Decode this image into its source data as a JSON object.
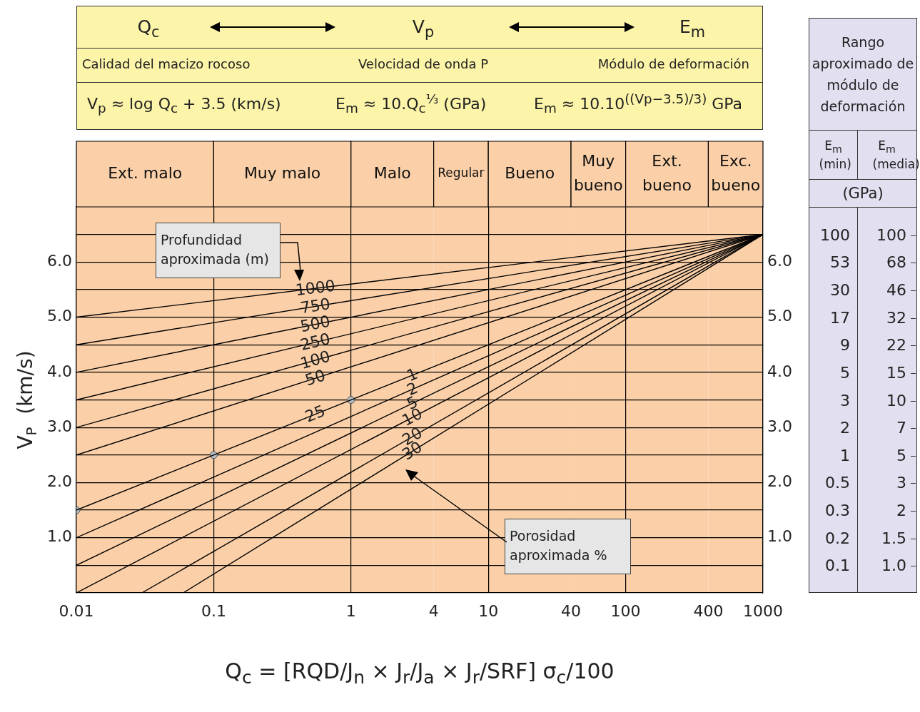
{
  "chart_data": [
    {
      "type": "line",
      "xlabel": "Q$_{c}$ = [RQD/J$_{n}$ × J$_{r}$/J$_{a}$ × J$_{r}$/SRF] σ$_{c}$/100",
      "ylabel": "V$_{P}$  (km/s)",
      "log": "x",
      "grid": true,
      "xlim": [
        0.01,
        1000
      ],
      "xticks": [
        0.01,
        0.1,
        1,
        4,
        10,
        40,
        100,
        400,
        1000
      ],
      "ylim": [
        0,
        7
      ],
      "yticks": [
        {
          "value": 0.5,
          "label": null
        },
        {
          "value": 1,
          "label": "1.0"
        },
        {
          "value": 1.5,
          "label": null
        },
        {
          "value": 2,
          "label": "2.0"
        },
        {
          "value": 2.5,
          "label": null
        },
        {
          "value": 3,
          "label": "3.0"
        },
        {
          "value": 3.5,
          "label": null
        },
        {
          "value": 4,
          "label": "4.0"
        },
        {
          "value": 4.5,
          "label": null
        },
        {
          "value": 5,
          "label": "5.0"
        },
        {
          "value": 5.5,
          "label": null
        },
        {
          "value": 6,
          "label": "6.0"
        },
        {
          "value": 6.5,
          "label": null
        }
      ],
      "y2lim": [
        0,
        7
      ],
      "y2ticks": [
        {
          "value": 1,
          "label": "1.0"
        },
        {
          "value": 2,
          "label": "2.0"
        },
        {
          "value": 3,
          "label": "3.0"
        },
        {
          "value": 4,
          "label": "4.0"
        },
        {
          "value": 5,
          "label": "5.0"
        },
        {
          "value": 6,
          "label": "6.0"
        }
      ],
      "bands": [
        {
          "axis": "x",
          "from": 0.01,
          "to": 0.1,
          "label": "Ext. malo",
          "color": "#fbd0a8"
        },
        {
          "axis": "x",
          "from": 0.1,
          "to": 1,
          "label": "Muy malo",
          "color": "#fbd0a8"
        },
        {
          "axis": "x",
          "from": 1,
          "to": 4,
          "label": "Malo",
          "color": "#fbd0a8"
        },
        {
          "axis": "x",
          "from": 4,
          "to": 10,
          "label": "Regular",
          "color": "#fbd0a8"
        },
        {
          "axis": "x",
          "from": 10,
          "to": 40,
          "label": "Bueno",
          "color": "#fbd0a8"
        },
        {
          "axis": "x",
          "from": 40,
          "to": 100,
          "label": "Muy bueno",
          "color": "#fbd0a8"
        },
        {
          "axis": "x",
          "from": 100,
          "to": 400,
          "label": "Ext. bueno",
          "color": "#fbd0a8"
        },
        {
          "axis": "x",
          "from": 400,
          "to": 1000,
          "label": "Exc. bueno",
          "color": "#fbd0a8"
        }
      ],
      "series": [
        {
          "name": "1000",
          "color": "#000000",
          "x": [
            0.01,
            1000
          ],
          "values": [
            5.0,
            6.5
          ]
        },
        {
          "name": "750",
          "color": "#000000",
          "x": [
            0.01,
            1000
          ],
          "values": [
            4.5,
            6.5
          ]
        },
        {
          "name": "500",
          "color": "#000000",
          "x": [
            0.01,
            1000
          ],
          "values": [
            4.0,
            6.5
          ]
        },
        {
          "name": "250",
          "color": "#000000",
          "x": [
            0.01,
            1000
          ],
          "values": [
            3.5,
            6.5
          ]
        },
        {
          "name": "100",
          "color": "#000000",
          "x": [
            0.01,
            1000
          ],
          "values": [
            3.0,
            6.5
          ]
        },
        {
          "name": "50",
          "color": "#000000",
          "x": [
            0.01,
            1000
          ],
          "values": [
            2.5,
            6.5
          ]
        },
        {
          "name": "25",
          "color": "#000000",
          "x": [
            0.01,
            1000
          ],
          "values": [
            1.5,
            6.5
          ]
        },
        {
          "name": "2",
          "color": "#000000",
          "x": [
            0.01,
            1000
          ],
          "values": [
            1.0,
            6.5
          ]
        },
        {
          "name": "5",
          "color": "#000000",
          "x": [
            0.01,
            1000
          ],
          "values": [
            0.5,
            6.5
          ]
        },
        {
          "name": "10",
          "color": "#000000",
          "x": [
            0.01,
            1000
          ],
          "values": [
            0,
            6.5
          ]
        },
        {
          "name": "20",
          "color": "#000000",
          "x": [
            0.03,
            1000
          ],
          "values": [
            0,
            6.5
          ]
        },
        {
          "name": "30",
          "color": "#000000",
          "x": [
            0.06,
            1000
          ],
          "values": [
            0,
            6.5
          ]
        },
        {
          "type": "scatter",
          "color": "#b4bcc4",
          "marker": "circle",
          "x": [
            0.01,
            0.1,
            1
          ],
          "values": [
            1.5,
            2.5,
            3.5
          ]
        }
      ],
      "annotations": [
        "Q$_{c}$",
        "V$_{p}$",
        "E$_{m}$",
        "Calidad del macizo rocoso",
        "Velocidad de onda P",
        "Módulo de deformación",
        "V$_{p}$ ≈ log Q$_{c}$ + 3.5 (km/s)",
        "E$_{m}$ ≈ 10.Q$_{c}$$^{⅓}$  (GPa)",
        "E$_{m}$ ≈ 10.10$^{((Vp−3.5)/3)}$ GPa",
        "Profundidad aproximada (m)",
        "Porosidad aproximada %",
        {
          "text": "1",
          "x": 2.8,
          "y": 3.95
        }
      ]
    },
    {
      "type": "other",
      "title": "Rango aproximado de módulo de deformación",
      "subtitle": "(GPa)",
      "categories": [
        "E$_{m}$ (min)",
        "E$_{m}$ (media)"
      ],
      "annotations": [
        "100",
        "100",
        "53",
        "68",
        "30",
        "46",
        "17",
        "32",
        "9",
        "22",
        "5",
        "15",
        "3",
        "10",
        "2",
        "7",
        "1",
        "5",
        "0.5",
        "3",
        "0.3",
        "2",
        "0.2",
        "1.5",
        "0.1",
        "1.0"
      ]
    }
  ]
}
